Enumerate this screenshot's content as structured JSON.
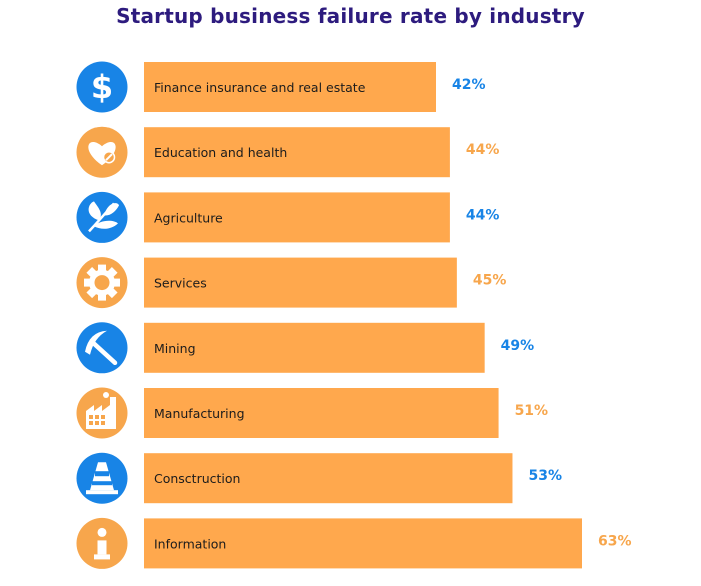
{
  "colors": {
    "bar": "#ffa84d",
    "blue": "#1884e6",
    "orange": "#f7a64c",
    "title": "#2d1b7e",
    "icon_fg": "#ffffff"
  },
  "chart_data": {
    "type": "bar",
    "orientation": "horizontal",
    "title": "Startup business failure rate by industry",
    "categories": [
      "Finance insurance and real estate",
      "Education and health",
      "Agriculture",
      "Services",
      "Mining",
      "Manufacturing",
      "Consctruction",
      "Information"
    ],
    "values": [
      42,
      44,
      44,
      45,
      49,
      51,
      53,
      63
    ],
    "value_labels": [
      "42%",
      "44%",
      "44%",
      "45%",
      "49%",
      "51%",
      "53%",
      "63%"
    ],
    "value_label_colors": [
      "#1884e6",
      "#f7a64c",
      "#1884e6",
      "#f7a64c",
      "#1884e6",
      "#f7a64c",
      "#1884e6",
      "#f7a64c"
    ],
    "icons": [
      "dollar-icon",
      "heart-icon",
      "leaf-icon",
      "gear-icon",
      "pickaxe-icon",
      "factory-icon",
      "traffic-cone-icon",
      "info-icon"
    ],
    "icon_colors": [
      "#1884e6",
      "#f7a64c",
      "#1884e6",
      "#f7a64c",
      "#1884e6",
      "#f7a64c",
      "#1884e6",
      "#f7a64c"
    ],
    "grid": false,
    "legend": "none"
  }
}
